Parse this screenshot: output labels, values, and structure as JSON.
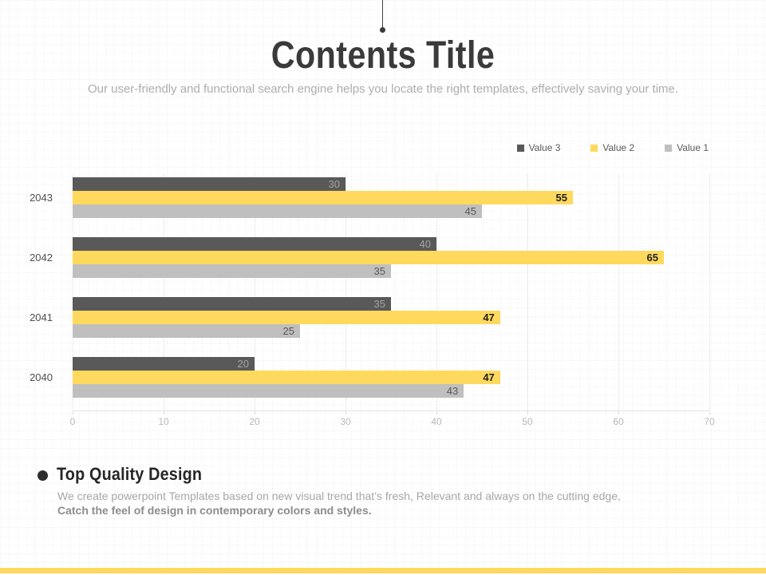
{
  "header": {
    "title": "Contents Title",
    "subtitle": "Our user-friendly and functional search engine helps you locate the right templates, effectively saving your time."
  },
  "chart_data": {
    "type": "bar",
    "orientation": "horizontal",
    "title": "",
    "categories": [
      "2043",
      "2042",
      "2041",
      "2040"
    ],
    "series": [
      {
        "name": "Value 3",
        "values": [
          30,
          40,
          35,
          20
        ],
        "color": "#595959",
        "label_color": "#a3a3a3",
        "label_bold": false
      },
      {
        "name": "Value  2",
        "values": [
          55,
          65,
          47,
          47
        ],
        "color": "#ffd95e",
        "label_color": "#1f1f1f",
        "label_bold": true
      },
      {
        "name": "Value  1",
        "values": [
          45,
          35,
          25,
          43
        ],
        "color": "#bfbfbf",
        "label_color": "#565656",
        "label_bold": false
      }
    ],
    "xlim": [
      0,
      70
    ],
    "x_ticks": [
      0,
      10,
      20,
      30,
      40,
      50,
      60,
      70
    ],
    "legend_position": "top-right",
    "grid": true
  },
  "content_block": {
    "heading": "Top Quality Design",
    "body_regular": "We create powerpoint Templates based on new visual trend that’s fresh, Relevant and always on the cutting edge,",
    "body_bold": "Catch the feel of design in contemporary colors and styles."
  },
  "colors": {
    "accent_yellow": "#ffd95e",
    "dark_gray": "#595959",
    "light_gray": "#bfbfbf",
    "title_text": "#3a3a3a",
    "muted_text": "#aeaeae"
  }
}
